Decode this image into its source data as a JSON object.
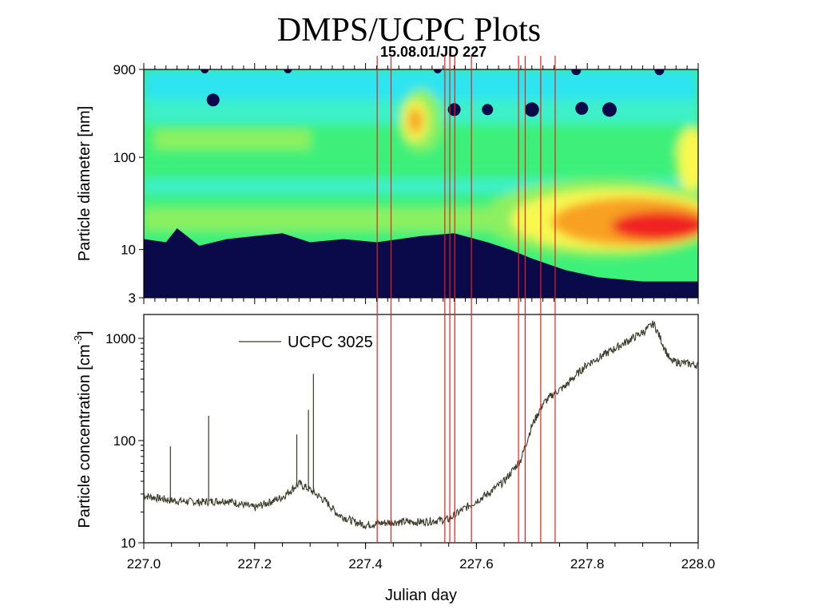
{
  "title": "DMPS/UCPC Plots",
  "subtitle": "15.08.01/JD 227",
  "chart_data": [
    {
      "type": "heatmap",
      "xlabel": "",
      "ylabel": "Particle diameter [nm]",
      "xlim": [
        227.0,
        228.0
      ],
      "ylim": [
        3,
        900
      ],
      "yscale": "log",
      "y_ticks": [
        "900",
        "100",
        "10",
        "3"
      ],
      "y_tick_values": [
        900,
        100,
        10,
        3
      ],
      "colors": {
        "navy": "#0a0a4a",
        "deep_blue": "#1040c0",
        "cyan": "#2ee4f0",
        "aqua": "#3ef0c8",
        "green": "#3cf07a",
        "light_green": "#8cf060",
        "yellow": "#f8f850",
        "orange": "#f8a020",
        "red": "#f02020"
      },
      "features": [
        {
          "label": "orange hotspot",
          "x": 227.49,
          "y": 250
        },
        {
          "label": "nucleation mode max",
          "x": 227.92,
          "y": 18
        }
      ]
    },
    {
      "type": "line",
      "xlabel": "Julian day",
      "ylabel": "Particle concentration [cm",
      "ylabel_exp": "-3",
      "ylabel_close": "]",
      "xlim": [
        227.0,
        228.0
      ],
      "ylim": [
        10,
        1600
      ],
      "yscale": "log",
      "x_ticks": [
        "227.0",
        "227.2",
        "227.4",
        "227.6",
        "227.8",
        "228.0"
      ],
      "x_tick_values": [
        227.0,
        227.2,
        227.4,
        227.6,
        227.8,
        228.0
      ],
      "y_ticks": [
        "1000",
        "100",
        "10"
      ],
      "y_tick_values": [
        1000,
        100,
        10
      ],
      "series": [
        {
          "name": "UCPC 3025",
          "color": "#3a3a28",
          "x": [
            227.0,
            227.05,
            227.1,
            227.15,
            227.2,
            227.25,
            227.28,
            227.3,
            227.33,
            227.35,
            227.38,
            227.4,
            227.45,
            227.5,
            227.55,
            227.58,
            227.62,
            227.65,
            227.68,
            227.7,
            227.72,
            227.74,
            227.76,
            227.78,
            227.8,
            227.85,
            227.9,
            227.92,
            227.95,
            228.0
          ],
          "y": [
            29,
            26,
            25,
            26,
            22,
            28,
            38,
            33,
            25,
            19,
            16,
            15,
            16,
            16,
            17,
            22,
            30,
            40,
            65,
            140,
            230,
            290,
            340,
            440,
            560,
            800,
            1150,
            1400,
            600,
            550
          ]
        }
      ],
      "spikes": [
        {
          "x": 227.048,
          "y": 88
        },
        {
          "x": 227.117,
          "y": 175
        },
        {
          "x": 227.276,
          "y": 115
        },
        {
          "x": 227.297,
          "y": 200
        },
        {
          "x": 227.306,
          "y": 450
        }
      ]
    }
  ],
  "event_lines": {
    "color": "#e82020",
    "x": [
      227.421,
      227.446,
      227.543,
      227.552,
      227.561,
      227.591,
      227.676,
      227.688,
      227.716,
      227.742
    ]
  }
}
